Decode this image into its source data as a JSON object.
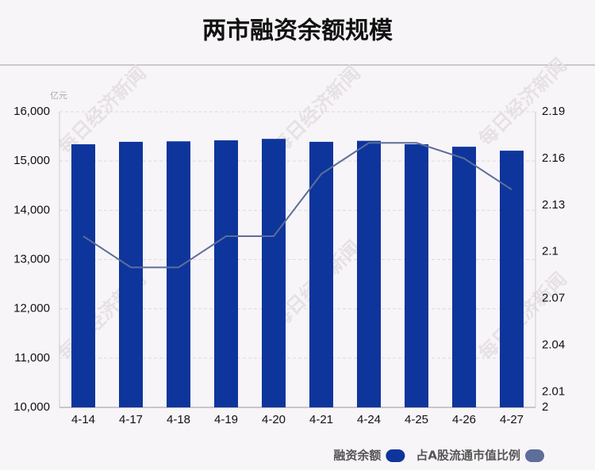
{
  "chart_data": {
    "type": "bar-line",
    "title": "两市融资余额规模",
    "unit": "亿元",
    "watermark": "每日经济新闻",
    "categories": [
      "4-14",
      "4-17",
      "4-18",
      "4-19",
      "4-20",
      "4-21",
      "4-24",
      "4-25",
      "4-26",
      "4-27"
    ],
    "series": [
      {
        "name": "融资余额",
        "type": "bar",
        "color": "#0e359c",
        "values": [
          15340,
          15390,
          15400,
          15420,
          15450,
          15390,
          15410,
          15340,
          15290,
          15210
        ]
      },
      {
        "name": "占A股流通市值比例",
        "type": "line",
        "axis": "y2",
        "color": "#5d6e98",
        "values": [
          2.11,
          2.09,
          2.09,
          2.11,
          2.11,
          2.15,
          2.17,
          2.17,
          2.16,
          2.14
        ]
      }
    ],
    "ylim": [
      10000,
      16000
    ],
    "yticks": [
      {
        "value": 10000,
        "label": "10,000"
      },
      {
        "value": 11000,
        "label": "11,000"
      },
      {
        "value": 12000,
        "label": "12,000"
      },
      {
        "value": 13000,
        "label": "13,000"
      },
      {
        "value": 14000,
        "label": "14,000"
      },
      {
        "value": 15000,
        "label": "15,000"
      },
      {
        "value": 16000,
        "label": "16,000"
      }
    ],
    "y2lim": [
      2,
      2.19
    ],
    "y2ticks": [
      2,
      2.01,
      2.04,
      2.07,
      2.1,
      2.13,
      2.16,
      2.19
    ],
    "grid": true,
    "legend": "bottom-right"
  }
}
